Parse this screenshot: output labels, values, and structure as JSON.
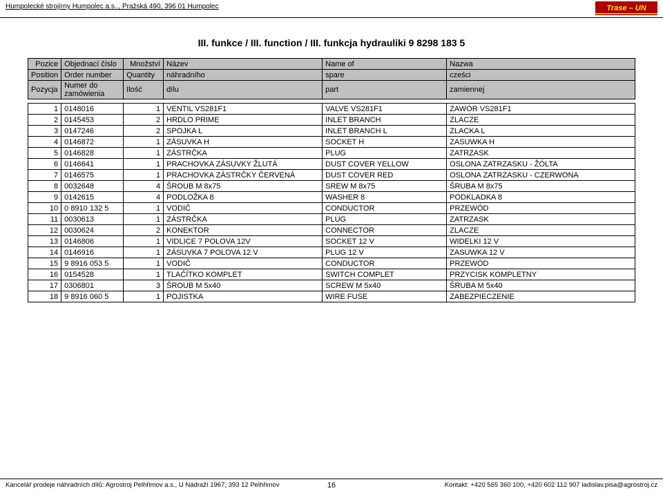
{
  "header": {
    "company": "Humpolecké strojírny Humpolec a.s.., Pražská 490, 396 01 Humpolec",
    "logo_text": "Trase - UN",
    "logo_bg": "#b00000",
    "logo_text_color": "#f5e600",
    "logo_stripe": "#f5e600"
  },
  "title": "III. funkce / III. function / III. funkcja hydrauliki 9 8298 183 5",
  "thead": {
    "r1c1": "Pozice",
    "r1c2": "Objednací číslo",
    "r1c3": "Množství",
    "r1c4": "Název",
    "r1c5": "Name of",
    "r1c6": "Nazwa",
    "r2c1": "Position",
    "r2c2": "Order number",
    "r2c3": "Quantity",
    "r2c4": "náhradního",
    "r2c5": "spare",
    "r2c6": "cześci",
    "r3c1": "Pozycja",
    "r3c2": "Numer do zamówienia",
    "r3c3": "Ilość",
    "r3c4": "dílu",
    "r3c5": "part",
    "r3c6": "zamiennej"
  },
  "rows": [
    {
      "pos": "1",
      "ord": "0148016",
      "qty": "1",
      "cz": "VENTIL VS281F1",
      "en": "VALVE VS281F1",
      "pl": "ZAWÓR VS281F1"
    },
    {
      "pos": "2",
      "ord": "0145453",
      "qty": "2",
      "cz": "HRDLO PRIME",
      "en": "INLET BRANCH",
      "pl": "ZLACZE"
    },
    {
      "pos": "3",
      "ord": "0147246",
      "qty": "2",
      "cz": "SPOJKA L",
      "en": "INLET BRANCH L",
      "pl": "ZLACKA L"
    },
    {
      "pos": "4",
      "ord": "0146872",
      "qty": "1",
      "cz": "ZÁSUVKA H",
      "en": "SOCKET H",
      "pl": "ZASUWKA H"
    },
    {
      "pos": "5",
      "ord": "0146828",
      "qty": "1",
      "cz": "ZÁSTRČKA",
      "en": "PLUG",
      "pl": "ZATRZASK"
    },
    {
      "pos": "6",
      "ord": "0146641",
      "qty": "1",
      "cz": "PRACHOVKA ZÁSUVKY ŽLUTÁ",
      "en": "DUST COVER YELLOW",
      "pl": "OSLONA ZATRZASKU - ŽÓLTA"
    },
    {
      "pos": "7",
      "ord": "0146575",
      "qty": "1",
      "cz": "PRACHOVKA ZÁSTRČKY ČERVENÁ",
      "en": "DUST COVER RED",
      "pl": "OSLONA ZATRZASKU - CZERWONA"
    },
    {
      "pos": "8",
      "ord": "0032648",
      "qty": "4",
      "cz": "ŠROUB M 8x75",
      "en": "SREW M 8x75",
      "pl": "ŠRUBA M 8x75"
    },
    {
      "pos": "9",
      "ord": "0142615",
      "qty": "4",
      "cz": "PODLOŽKA 8",
      "en": "WASHER 8",
      "pl": "PODKLADKA 8"
    },
    {
      "pos": "10",
      "ord": "0 8910 132 5",
      "qty": "1",
      "cz": "VODIČ",
      "en": "CONDUCTOR",
      "pl": "PRZEWÓD"
    },
    {
      "pos": "11",
      "ord": "0030613",
      "qty": "1",
      "cz": "ZÁSTRČKA",
      "en": "PLUG",
      "pl": "ZATRZASK"
    },
    {
      "pos": "12",
      "ord": "0030624",
      "qty": "2",
      "cz": "KONEKTOR",
      "en": "CONNECTOR",
      "pl": "ZLACZE"
    },
    {
      "pos": "13",
      "ord": "0146806",
      "qty": "1",
      "cz": "VIDLICE 7 POLOVA 12V",
      "en": "SOCKET 12 V",
      "pl": "WIDELKI 12 V"
    },
    {
      "pos": "14",
      "ord": "0146916",
      "qty": "1",
      "cz": "ZÁSUVKA 7 POLOVA 12 V",
      "en": "PLUG 12 V",
      "pl": "ZASUWKA 12 V"
    },
    {
      "pos": "15",
      "ord": "9 8916 053 5",
      "qty": "1",
      "cz": "VODIČ",
      "en": "CONDUCTOR",
      "pl": "PRZEWÓD"
    },
    {
      "pos": "16",
      "ord": "0154528",
      "qty": "1",
      "cz": "TLAČÍTKO KOMPLET",
      "en": "SWITCH COMPLET",
      "pl": "PRZYCISK KOMPLETNY"
    },
    {
      "pos": "17",
      "ord": "0306801",
      "qty": "3",
      "cz": "ŠROUB M 5x40",
      "en": "SCREW M 5x40",
      "pl": "ŠRUBA M 5x40"
    },
    {
      "pos": "18",
      "ord": "9 8916 060 5",
      "qty": "1",
      "cz": "POJISTKA",
      "en": "WIRE FUSE",
      "pl": "ZABEZPIECZENIE"
    }
  ],
  "footer": {
    "left": "Kancelář prodeje náhradních dílů: Agrostroj Pelhřimov a.s., U Nádraží 1967, 393 12 Pelhřimov",
    "page": "16",
    "right": "Kontakt: +420 565 360 100, +420 602 112 907 ladislav.pisa@agrostroj.cz"
  }
}
